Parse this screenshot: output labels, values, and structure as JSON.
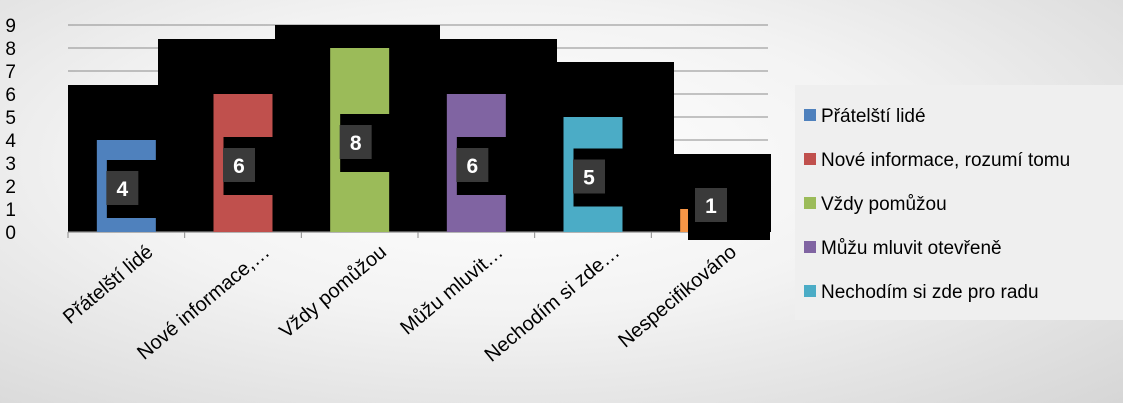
{
  "chart_data": {
    "type": "bar",
    "title": "",
    "xlabel": "",
    "ylabel": "",
    "categories": [
      "Přátelští lidé",
      "Nové informace,…",
      "Vždy pomůžou",
      "Můžu mluvit…",
      "Nechodím si zde…",
      "Nespecifikováno"
    ],
    "values": [
      4,
      6,
      8,
      6,
      5,
      1
    ],
    "data_labels": [
      "4",
      "6",
      "8",
      "6",
      "5",
      "1"
    ],
    "colors": [
      "#4f81bd",
      "#c0504d",
      "#9bbb59",
      "#8064a2",
      "#4bacc6",
      "#f79646"
    ],
    "ylim": [
      0,
      9
    ],
    "yticks": [
      "0",
      "1",
      "2",
      "3",
      "4",
      "5",
      "6",
      "7",
      "8",
      "9"
    ],
    "grid": true,
    "legend_position": "right",
    "legend": [
      {
        "label": "Přátelští lidé",
        "color": "#4f81bd"
      },
      {
        "label": "Nové informace, rozumí tomu",
        "color": "#c0504d"
      },
      {
        "label": "Vždy pomůžou",
        "color": "#9bbb59"
      },
      {
        "label": "Můžu mluvit otevřeně",
        "color": "#8064a2"
      },
      {
        "label": "Nechodím si zde pro radu",
        "color": "#4bacc6"
      }
    ]
  }
}
